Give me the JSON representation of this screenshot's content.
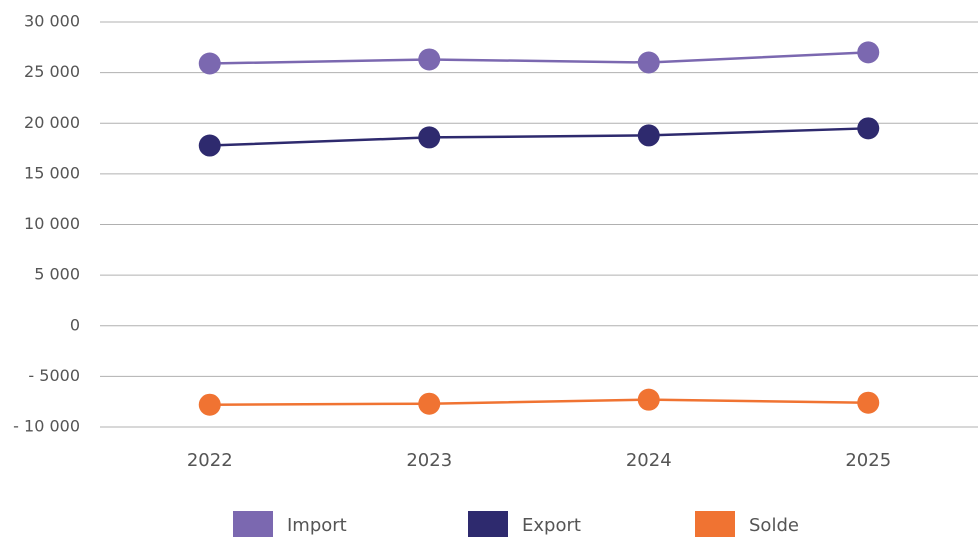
{
  "chart_data": {
    "type": "line",
    "categories": [
      "2022",
      "2023",
      "2024",
      "2025"
    ],
    "series": [
      {
        "name": "Import",
        "color": "#7b68b0",
        "values": [
          25900,
          26300,
          26000,
          27000
        ]
      },
      {
        "name": "Export",
        "color": "#2e2a6e",
        "values": [
          17800,
          18600,
          18800,
          19500
        ]
      },
      {
        "name": "Solde",
        "color": "#f07332",
        "values": [
          -7800,
          -7700,
          -7300,
          -7600
        ]
      }
    ],
    "ylim": [
      -10000,
      30000
    ],
    "yticks": [
      {
        "value": -10000,
        "label": "- 10 000"
      },
      {
        "value": -5000,
        "label": "- 5000"
      },
      0,
      {
        "value": 5000,
        "label": "5 000"
      },
      {
        "value": 10000,
        "label": "10 000"
      },
      {
        "value": 15000,
        "label": "15 000"
      },
      {
        "value": 20000,
        "label": "20 000"
      },
      {
        "value": 25000,
        "label": "25 000"
      },
      {
        "value": 30000,
        "label": "30 000"
      }
    ],
    "grid": true,
    "legend": "bottom"
  }
}
